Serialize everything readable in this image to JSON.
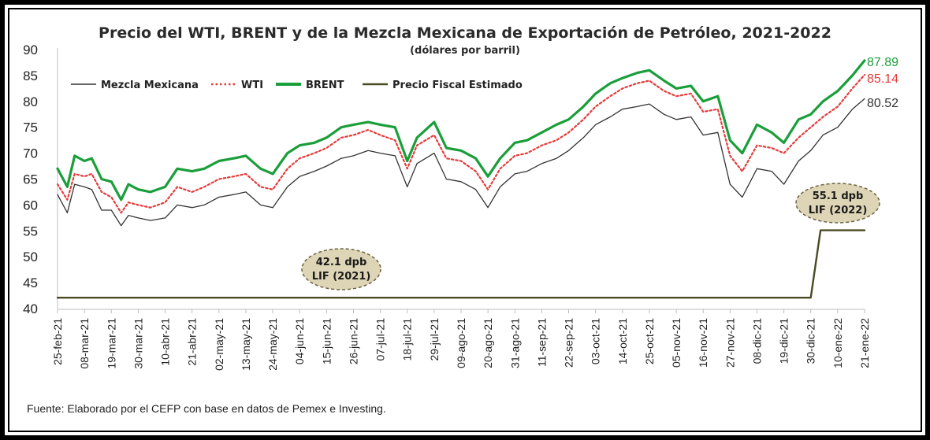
{
  "chart_data": {
    "type": "line",
    "title": "Precio del WTI, BRENT y de la Mezcla Mexicana de Exportación de Petróleo, 2021-2022",
    "subtitle": "(dólares por barril)",
    "ylim": [
      40,
      90
    ],
    "yticks": [
      "40",
      "45",
      "50",
      "55",
      "60",
      "65",
      "70",
      "75",
      "80",
      "85",
      "90"
    ],
    "xticks": [
      "25-feb-21",
      "08-mar-21",
      "19-mar-21",
      "30-mar-21",
      "10-abr-21",
      "21-abr-21",
      "02-may-21",
      "13-may-21",
      "24-may-21",
      "04-jun-21",
      "15-jun-21",
      "26-jun-21",
      "07-jul-21",
      "18-jul-21",
      "29-jul-21",
      "09-ago-21",
      "20-ago-21",
      "31-ago-21",
      "11-sep-21",
      "22-sep-21",
      "03-oct-21",
      "14-oct-21",
      "25-oct-21",
      "05-nov-21",
      "16-nov-21",
      "27-nov-21",
      "08-dic-21",
      "19-dic-21",
      "30-dic-21",
      "10-ene-22",
      "21-ene-22"
    ],
    "legend": {
      "placement": "top-left",
      "entries": [
        "Mezcla Mexicana",
        "WTI",
        "BRENT",
        "Precio Fiscal Estimado"
      ]
    },
    "end_labels": [
      "87.89",
      "85.14",
      "80.52"
    ],
    "series": [
      {
        "name": "BRENT",
        "color": "#1a9e3a",
        "x": [
          "25-feb-21",
          "01-mar-21",
          "04-mar-21",
          "08-mar-21",
          "11-mar-21",
          "15-mar-21",
          "19-mar-21",
          "23-mar-21",
          "26-mar-21",
          "30-mar-21",
          "04-abr-21",
          "10-abr-21",
          "15-abr-21",
          "21-abr-21",
          "26-abr-21",
          "02-may-21",
          "08-may-21",
          "13-may-21",
          "19-may-21",
          "24-may-21",
          "30-may-21",
          "04-jun-21",
          "10-jun-21",
          "15-jun-21",
          "21-jun-21",
          "26-jun-21",
          "02-jul-21",
          "07-jul-21",
          "13-jul-21",
          "18-jul-21",
          "22-jul-21",
          "29-jul-21",
          "03-ago-21",
          "09-ago-21",
          "15-ago-21",
          "20-ago-21",
          "25-ago-21",
          "31-ago-21",
          "05-sep-21",
          "11-sep-21",
          "17-sep-21",
          "22-sep-21",
          "28-sep-21",
          "03-oct-21",
          "09-oct-21",
          "14-oct-21",
          "20-oct-21",
          "25-oct-21",
          "31-oct-21",
          "05-nov-21",
          "11-nov-21",
          "16-nov-21",
          "22-nov-21",
          "27-nov-21",
          "02-dic-21",
          "08-dic-21",
          "14-dic-21",
          "19-dic-21",
          "25-dic-21",
          "30-dic-21",
          "04-ene-22",
          "10-ene-22",
          "16-ene-22",
          "21-ene-22"
        ],
        "values": [
          67.0,
          63.5,
          69.5,
          68.5,
          69.0,
          65.0,
          64.5,
          61.0,
          64.0,
          63.0,
          62.5,
          63.5,
          67.0,
          66.5,
          67.0,
          68.5,
          69.0,
          69.5,
          67.0,
          66.0,
          70.0,
          71.5,
          72.0,
          73.0,
          75.0,
          75.5,
          76.0,
          75.5,
          75.0,
          68.5,
          73.0,
          76.0,
          71.0,
          70.5,
          69.0,
          65.5,
          69.0,
          72.0,
          72.5,
          74.0,
          75.5,
          76.5,
          79.0,
          81.5,
          83.5,
          84.5,
          85.5,
          86.0,
          84.0,
          82.5,
          83.0,
          80.0,
          81.0,
          72.5,
          70.0,
          75.5,
          74.0,
          72.0,
          76.5,
          77.5,
          80.0,
          82.0,
          85.0,
          87.89
        ]
      },
      {
        "name": "WTI",
        "color": "#e53b3b",
        "x": [
          "25-feb-21",
          "01-mar-21",
          "04-mar-21",
          "08-mar-21",
          "11-mar-21",
          "15-mar-21",
          "19-mar-21",
          "23-mar-21",
          "26-mar-21",
          "30-mar-21",
          "04-abr-21",
          "10-abr-21",
          "15-abr-21",
          "21-abr-21",
          "26-abr-21",
          "02-may-21",
          "08-may-21",
          "13-may-21",
          "19-may-21",
          "24-may-21",
          "30-may-21",
          "04-jun-21",
          "10-jun-21",
          "15-jun-21",
          "21-jun-21",
          "26-jun-21",
          "02-jul-21",
          "07-jul-21",
          "13-jul-21",
          "18-jul-21",
          "22-jul-21",
          "29-jul-21",
          "03-ago-21",
          "09-ago-21",
          "15-ago-21",
          "20-ago-21",
          "25-ago-21",
          "31-ago-21",
          "05-sep-21",
          "11-sep-21",
          "17-sep-21",
          "22-sep-21",
          "28-sep-21",
          "03-oct-21",
          "09-oct-21",
          "14-oct-21",
          "20-oct-21",
          "25-oct-21",
          "31-oct-21",
          "05-nov-21",
          "11-nov-21",
          "16-nov-21",
          "22-nov-21",
          "27-nov-21",
          "02-dic-21",
          "08-dic-21",
          "14-dic-21",
          "19-dic-21",
          "25-dic-21",
          "30-dic-21",
          "04-ene-22",
          "10-ene-22",
          "16-ene-22",
          "21-ene-22"
        ],
        "values": [
          64.0,
          61.0,
          66.0,
          65.5,
          66.0,
          62.5,
          61.5,
          58.5,
          60.5,
          60.0,
          59.5,
          60.5,
          63.5,
          62.5,
          63.5,
          65.0,
          65.5,
          66.0,
          63.5,
          63.0,
          67.0,
          69.0,
          70.0,
          71.0,
          73.0,
          73.5,
          74.5,
          73.5,
          72.5,
          67.0,
          71.5,
          73.5,
          69.0,
          68.5,
          66.5,
          63.0,
          67.0,
          69.5,
          70.0,
          71.5,
          72.5,
          74.0,
          76.5,
          79.0,
          81.0,
          82.5,
          83.5,
          84.0,
          82.0,
          81.0,
          81.5,
          78.0,
          78.5,
          69.5,
          66.5,
          71.5,
          71.0,
          70.0,
          73.0,
          75.0,
          77.0,
          79.0,
          82.5,
          85.14
        ]
      },
      {
        "name": "Mezcla Mexicana",
        "color": "#333333",
        "x": [
          "25-feb-21",
          "01-mar-21",
          "04-mar-21",
          "08-mar-21",
          "11-mar-21",
          "15-mar-21",
          "19-mar-21",
          "23-mar-21",
          "26-mar-21",
          "30-mar-21",
          "04-abr-21",
          "10-abr-21",
          "15-abr-21",
          "21-abr-21",
          "26-abr-21",
          "02-may-21",
          "08-may-21",
          "13-may-21",
          "19-may-21",
          "24-may-21",
          "30-may-21",
          "04-jun-21",
          "10-jun-21",
          "15-jun-21",
          "21-jun-21",
          "26-jun-21",
          "02-jul-21",
          "07-jul-21",
          "13-jul-21",
          "18-jul-21",
          "22-jul-21",
          "29-jul-21",
          "03-ago-21",
          "09-ago-21",
          "15-ago-21",
          "20-ago-21",
          "25-ago-21",
          "31-ago-21",
          "05-sep-21",
          "11-sep-21",
          "17-sep-21",
          "22-sep-21",
          "28-sep-21",
          "03-oct-21",
          "09-oct-21",
          "14-oct-21",
          "20-oct-21",
          "25-oct-21",
          "31-oct-21",
          "05-nov-21",
          "11-nov-21",
          "16-nov-21",
          "22-nov-21",
          "27-nov-21",
          "02-dic-21",
          "08-dic-21",
          "14-dic-21",
          "19-dic-21",
          "25-dic-21",
          "30-dic-21",
          "04-ene-22",
          "10-ene-22",
          "16-ene-22",
          "21-ene-22"
        ],
        "values": [
          62.0,
          58.5,
          64.0,
          63.5,
          63.0,
          59.0,
          59.0,
          56.0,
          58.0,
          57.5,
          57.0,
          57.5,
          60.0,
          59.5,
          60.0,
          61.5,
          62.0,
          62.5,
          60.0,
          59.5,
          63.5,
          65.5,
          66.5,
          67.5,
          69.0,
          69.5,
          70.5,
          70.0,
          69.5,
          63.5,
          68.0,
          70.0,
          65.0,
          64.5,
          63.0,
          59.5,
          63.5,
          66.0,
          66.5,
          68.0,
          69.0,
          70.5,
          73.0,
          75.5,
          77.0,
          78.5,
          79.0,
          79.5,
          77.5,
          76.5,
          77.0,
          73.5,
          74.0,
          64.0,
          61.5,
          67.0,
          66.5,
          64.0,
          68.5,
          70.5,
          73.5,
          75.0,
          78.5,
          80.52
        ]
      },
      {
        "name": "Precio Fiscal Estimado",
        "color": "#4a4a25",
        "x": [
          "25-feb-21",
          "30-dic-21",
          "03-ene-22",
          "21-ene-22"
        ],
        "values": [
          42.1,
          42.1,
          55.1,
          55.1
        ]
      }
    ],
    "annotations": [
      {
        "lines": [
          "42.1 dpb",
          "LIF (2021)"
        ]
      },
      {
        "lines": [
          "55.1 dpb",
          "LIF (2022)"
        ]
      }
    ]
  },
  "source_note": "Fuente: Elaborado por el CEFP con base en datos de Pemex e Investing."
}
